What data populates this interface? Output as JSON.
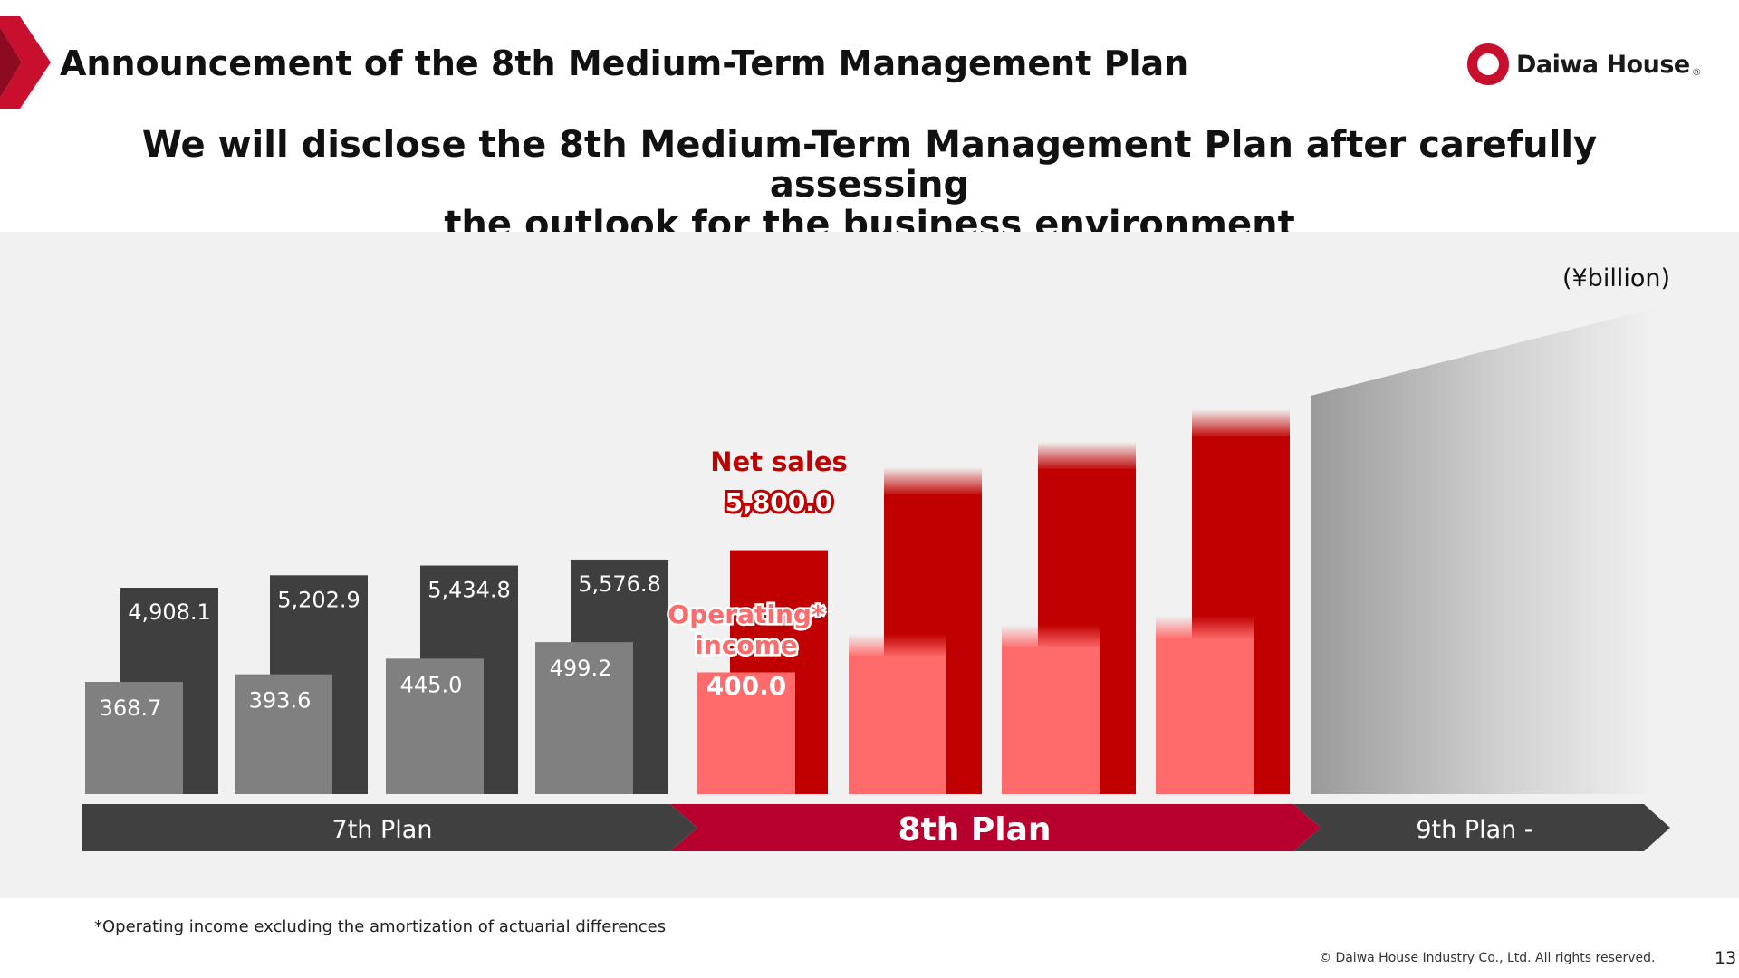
{
  "header": {
    "title": "Announcement of the 8th Medium-Term Management Plan",
    "logo_text": "Daiwa House",
    "logo_mark": "®"
  },
  "subtitle": {
    "line1": "We will disclose the 8th Medium-Term Management Plan after carefully assessing",
    "line2": "the outlook for the business environment"
  },
  "colors": {
    "brand_red": "#c8102e",
    "net_sales_dark": "#3f3f3f",
    "op_income_gray": "#808080",
    "plan8_net_sales": "#c00000",
    "plan8_op_income": "#ff6b6b",
    "plan8_arrow": "#b8002f",
    "label_red": "#c00000",
    "label_pink": "#ff6b6b"
  },
  "chart_data": {
    "type": "bar",
    "unit_label": "(¥billion)",
    "series": [
      {
        "name": "Net sales",
        "values": [
          4908.1,
          5202.9,
          5434.8,
          5576.8,
          5800.0
        ],
        "labels": [
          "4,908.1",
          "5,202.9",
          "5,434.8",
          "5,576.8",
          "5,800.0"
        ]
      },
      {
        "name": "Operating* income",
        "values": [
          368.7,
          393.6,
          445.0,
          499.2,
          400.0
        ],
        "labels": [
          "368.7",
          "393.6",
          "445.0",
          "499.2",
          "400.0"
        ]
      }
    ],
    "series_labels": {
      "net_sales": "Net sales",
      "op_income_line1": "Operating*",
      "op_income_line2": "income"
    },
    "plans": [
      {
        "label": "7th Plan",
        "color": "#404040"
      },
      {
        "label": "8th Plan",
        "color": "#b8002f"
      },
      {
        "label": "9th Plan -",
        "color": "#404040"
      }
    ],
    "future_bars_8th_plan": 3,
    "legend": "none",
    "grid": false
  },
  "footer": {
    "footnote": "*Operating income excluding the amortization of actuarial differences",
    "copyright": "© Daiwa House Industry Co., Ltd. All rights reserved.",
    "page_number": "13"
  }
}
